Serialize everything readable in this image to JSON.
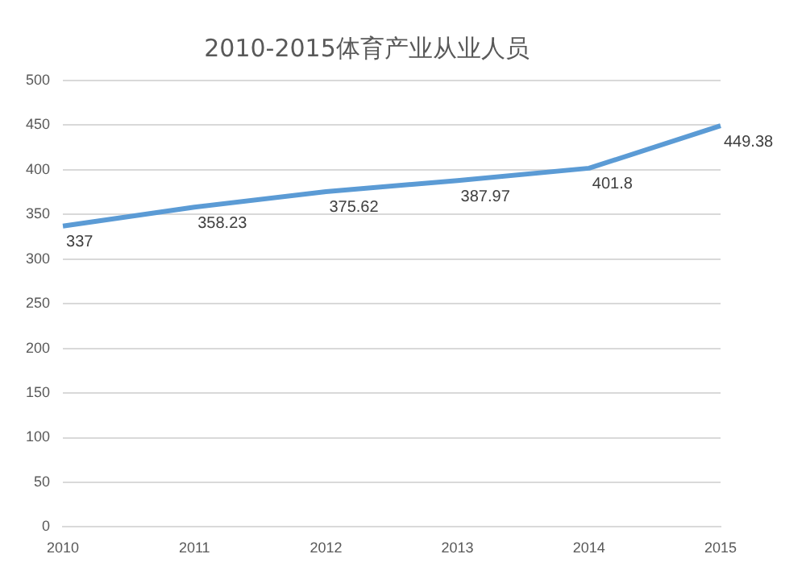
{
  "chart_data": {
    "type": "line",
    "title": "2010-2015体育产业从业人员",
    "categories": [
      "2010",
      "2011",
      "2012",
      "2013",
      "2014",
      "2015"
    ],
    "series": [
      {
        "color": "#5b9bd5",
        "values": [
          337,
          358.23,
          375.62,
          387.97,
          401.8,
          449.38
        ]
      }
    ],
    "ylim": [
      0,
      500
    ],
    "yticks": [
      0,
      50,
      100,
      150,
      200,
      250,
      300,
      350,
      400,
      450,
      500
    ],
    "grid": "y",
    "data_labels": true,
    "marker": "none",
    "line_style": "solid"
  }
}
